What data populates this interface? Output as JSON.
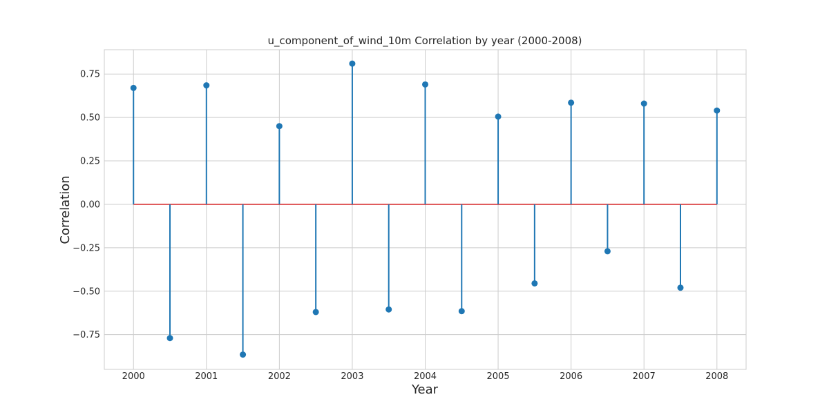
{
  "chart_data": {
    "type": "stem",
    "title": "u_component_of_wind_10m Correlation by year (2000-2008)",
    "xlabel": "Year",
    "ylabel": "Correlation",
    "xlim": [
      1999.6,
      2008.4
    ],
    "ylim": [
      -0.95,
      0.89
    ],
    "x_ticks": [
      2000,
      2001,
      2002,
      2003,
      2004,
      2005,
      2006,
      2007,
      2008
    ],
    "x_tick_labels": [
      "2000",
      "2001",
      "2002",
      "2003",
      "2004",
      "2005",
      "2006",
      "2007",
      "2008"
    ],
    "y_ticks": [
      -0.75,
      -0.5,
      -0.25,
      0.0,
      0.25,
      0.5,
      0.75
    ],
    "y_tick_labels": [
      "−0.75",
      "−0.50",
      "−0.25",
      "0.00",
      "0.25",
      "0.50",
      "0.75"
    ],
    "grid": true,
    "baseline": 0.0,
    "colors": {
      "stem": "#1f77b4",
      "marker": "#1f77b4",
      "baseline": "#d62728",
      "grid": "#cccccc",
      "frame": "#cccccc"
    },
    "points": [
      {
        "x": 2000.0,
        "y": 0.67
      },
      {
        "x": 2000.5,
        "y": -0.77
      },
      {
        "x": 2001.0,
        "y": 0.685
      },
      {
        "x": 2001.5,
        "y": -0.865
      },
      {
        "x": 2002.0,
        "y": 0.45
      },
      {
        "x": 2002.5,
        "y": -0.62
      },
      {
        "x": 2003.0,
        "y": 0.81
      },
      {
        "x": 2003.5,
        "y": -0.605
      },
      {
        "x": 2004.0,
        "y": 0.69
      },
      {
        "x": 2004.5,
        "y": -0.615
      },
      {
        "x": 2005.0,
        "y": 0.505
      },
      {
        "x": 2005.5,
        "y": -0.455
      },
      {
        "x": 2006.0,
        "y": 0.585
      },
      {
        "x": 2006.5,
        "y": -0.27
      },
      {
        "x": 2007.0,
        "y": 0.58
      },
      {
        "x": 2007.5,
        "y": -0.48
      },
      {
        "x": 2008.0,
        "y": 0.54
      }
    ]
  }
}
